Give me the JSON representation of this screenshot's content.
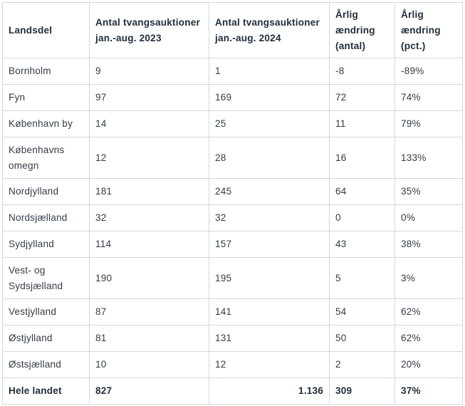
{
  "headers": [
    "Landsdel",
    "Antal tvangsauktioner jan.-aug. 2023",
    "Antal tvangsauktioner jan.-aug. 2024",
    "Årlig ændring (antal)",
    "Årlig ændring (pct.)"
  ],
  "rows": [
    [
      "Bornholm",
      "9",
      "1",
      "-8",
      "-89%"
    ],
    [
      "Fyn",
      "97",
      "169",
      "72",
      "74%"
    ],
    [
      "København by",
      "14",
      "25",
      "11",
      "79%"
    ],
    [
      "Københavns omegn",
      "12",
      "28",
      "16",
      "133%"
    ],
    [
      "Nordjylland",
      "181",
      "245",
      "64",
      "35%"
    ],
    [
      "Nordsjælland",
      "32",
      "32",
      "0",
      "0%"
    ],
    [
      "Sydjylland",
      "114",
      "157",
      "43",
      "38%"
    ],
    [
      "Vest- og Sydsjælland",
      "190",
      "195",
      "5",
      "3%"
    ],
    [
      "Vestjylland",
      "87",
      "141",
      "54",
      "62%"
    ],
    [
      "Østjylland",
      "81",
      "131",
      "50",
      "62%"
    ],
    [
      "Østsjælland",
      "10",
      "12",
      "2",
      "20%"
    ]
  ],
  "total": [
    "Hele landet",
    "827",
    "1.136",
    "309",
    "37%"
  ]
}
